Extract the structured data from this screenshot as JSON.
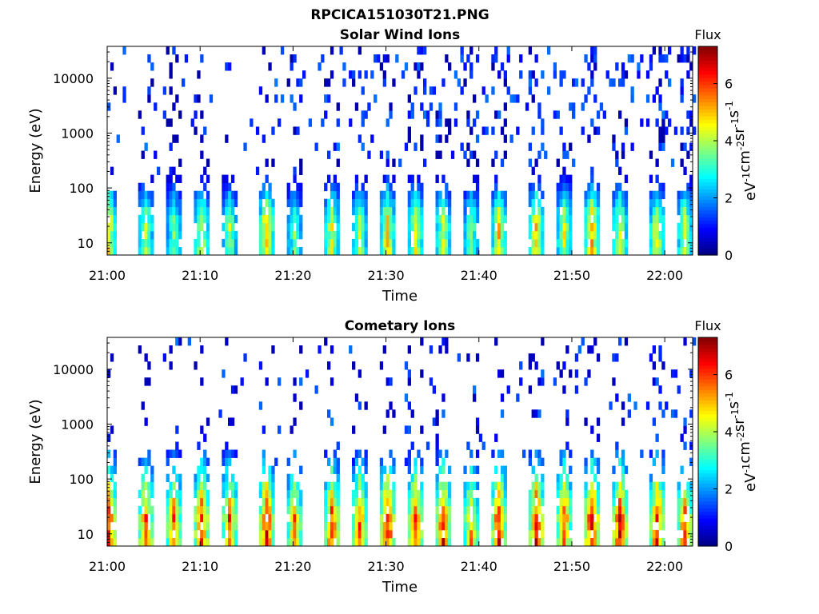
{
  "figure": {
    "title": "RPCICA151030T21.PNG"
  },
  "chart_data": [
    {
      "type": "heatmap",
      "title": "Solar Wind Ions",
      "xlabel": "Time",
      "ylabel": "Energy (eV)",
      "x_ticks": [
        "21:00",
        "21:10",
        "21:20",
        "21:30",
        "21:40",
        "21:50",
        "22:00"
      ],
      "x_range": [
        "21:00",
        "22:03"
      ],
      "y_scale": "log",
      "y_ticks": [
        10,
        100,
        1000,
        10000
      ],
      "y_tick_labels": [
        "10",
        "100",
        "1000",
        "10000"
      ],
      "y_range": [
        6,
        38000
      ],
      "colorbar": {
        "label_top": "Flux",
        "unit": "eV-1cm-2sr-1s-1",
        "range": [
          0,
          7.3
        ],
        "ticks": [
          0,
          2,
          4,
          6
        ],
        "colormap": "jet"
      },
      "bursts": [
        {
          "t": "21:00",
          "flux": 5.0
        },
        {
          "t": "21:04",
          "flux": 4.3
        },
        {
          "t": "21:07",
          "flux": 3.8
        },
        {
          "t": "21:10",
          "flux": 4.4
        },
        {
          "t": "21:13",
          "flux": 4.0
        },
        {
          "t": "21:17",
          "flux": 5.2
        },
        {
          "t": "21:20",
          "flux": 3.6
        },
        {
          "t": "21:24",
          "flux": 4.6
        },
        {
          "t": "21:27",
          "flux": 4.1
        },
        {
          "t": "21:30",
          "flux": 5.0
        },
        {
          "t": "21:33",
          "flux": 4.6
        },
        {
          "t": "21:36",
          "flux": 4.4
        },
        {
          "t": "21:39",
          "flux": 3.8
        },
        {
          "t": "21:42",
          "flux": 4.9
        },
        {
          "t": "21:46",
          "flux": 5.0
        },
        {
          "t": "21:49",
          "flux": 4.4
        },
        {
          "t": "21:52",
          "flux": 5.4
        },
        {
          "t": "21:55",
          "flux": 4.6
        },
        {
          "t": "21:59",
          "flux": 4.6
        },
        {
          "t": "22:02",
          "flux": 4.5
        }
      ]
    },
    {
      "type": "heatmap",
      "title": "Cometary Ions",
      "xlabel": "Time",
      "ylabel": "Energy (eV)",
      "x_ticks": [
        "21:00",
        "21:10",
        "21:20",
        "21:30",
        "21:40",
        "21:50",
        "22:00"
      ],
      "x_range": [
        "21:00",
        "22:03"
      ],
      "y_scale": "log",
      "y_ticks": [
        10,
        100,
        1000,
        10000
      ],
      "y_tick_labels": [
        "10",
        "100",
        "1000",
        "10000"
      ],
      "y_range": [
        6,
        38000
      ],
      "colorbar": {
        "label_top": "Flux",
        "unit": "eV-1cm-2sr-1s-1",
        "range": [
          0,
          7.3
        ],
        "ticks": [
          0,
          2,
          4,
          6
        ],
        "colormap": "jet"
      },
      "bursts": [
        {
          "t": "21:00",
          "flux": 6.5
        },
        {
          "t": "21:04",
          "flux": 6.0
        },
        {
          "t": "21:07",
          "flux": 5.8
        },
        {
          "t": "21:10",
          "flux": 6.4
        },
        {
          "t": "21:13",
          "flux": 5.9
        },
        {
          "t": "21:17",
          "flux": 6.6
        },
        {
          "t": "21:20",
          "flux": 5.6
        },
        {
          "t": "21:24",
          "flux": 6.2
        },
        {
          "t": "21:27",
          "flux": 5.9
        },
        {
          "t": "21:30",
          "flux": 6.6
        },
        {
          "t": "21:33",
          "flux": 6.2
        },
        {
          "t": "21:36",
          "flux": 6.3
        },
        {
          "t": "21:39",
          "flux": 5.4
        },
        {
          "t": "21:42",
          "flux": 6.5
        },
        {
          "t": "21:46",
          "flux": 6.6
        },
        {
          "t": "21:49",
          "flux": 6.0
        },
        {
          "t": "21:52",
          "flux": 6.8
        },
        {
          "t": "21:55",
          "flux": 6.6
        },
        {
          "t": "21:59",
          "flux": 6.3
        },
        {
          "t": "22:02",
          "flux": 6.2
        }
      ]
    }
  ]
}
